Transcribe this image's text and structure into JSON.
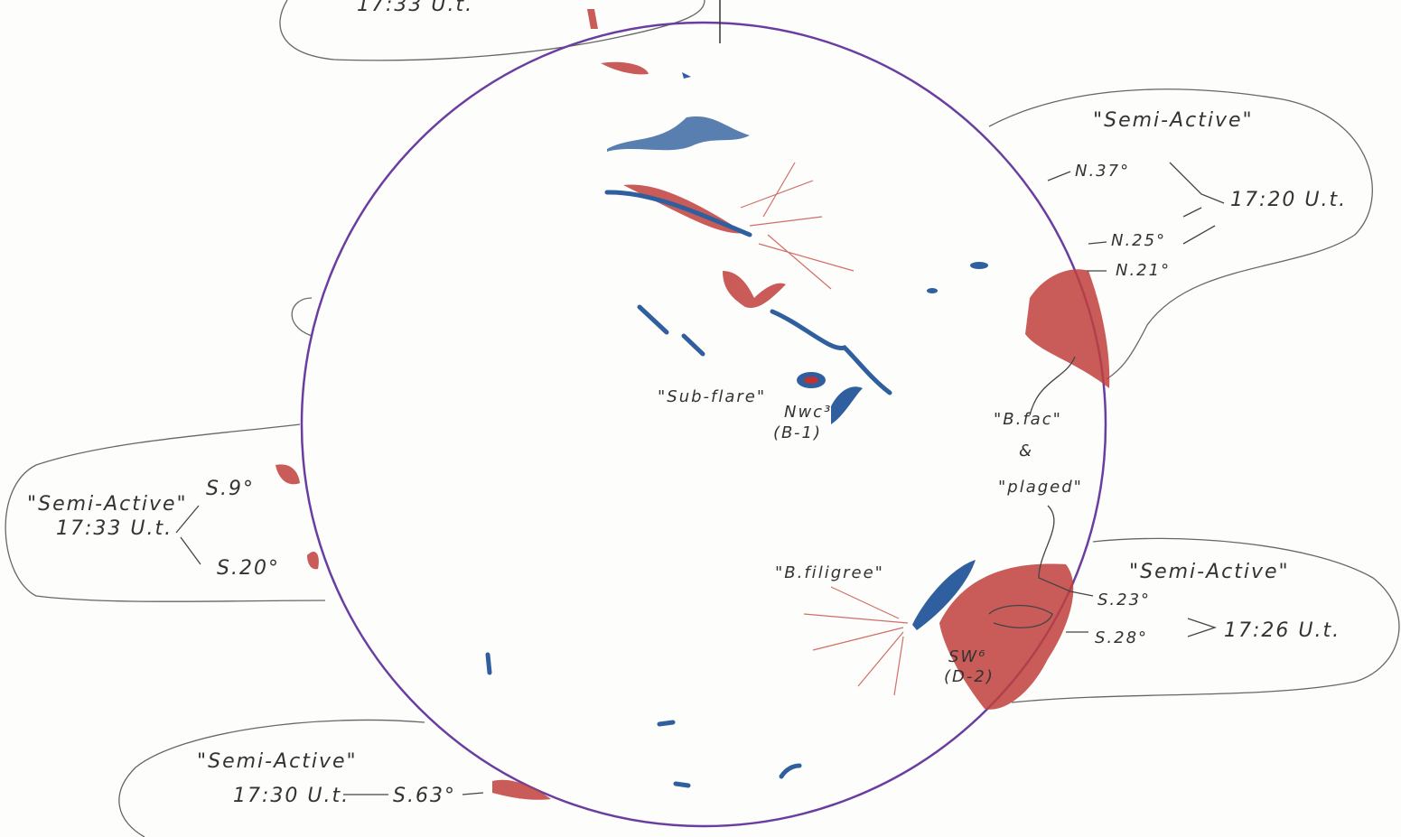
{
  "top_time": "17:33 U.t.",
  "callouts": [
    {
      "title": "\"Semi-Active\"",
      "latitudes": [
        "N.37°",
        "N.25°",
        "N.21°"
      ],
      "time": "17:20 U.t."
    },
    {
      "title": "\"Semi-Active\"",
      "latitudes": [
        "S.23°",
        "S.28°"
      ],
      "time": "17:26 U.t."
    },
    {
      "title": "\"Semi-Active\"",
      "latitudes": [
        "S.9°",
        "S.20°"
      ],
      "time": "17:33 U.t."
    },
    {
      "title": "\"Semi-Active\"",
      "latitudes": [
        "S.63°"
      ],
      "time": "17:30 U.t."
    }
  ],
  "features": {
    "sub_flare": "\"Sub-flare\"",
    "nwc": "Nwc³",
    "nwc_class": "(B-1)",
    "b_fac": "\"B.fac\"",
    "and": "&",
    "plaged": "\"plaged\"",
    "filigree": "\"B.filigree\"",
    "sw": "SW⁶",
    "sw_class": "(D-2)"
  }
}
